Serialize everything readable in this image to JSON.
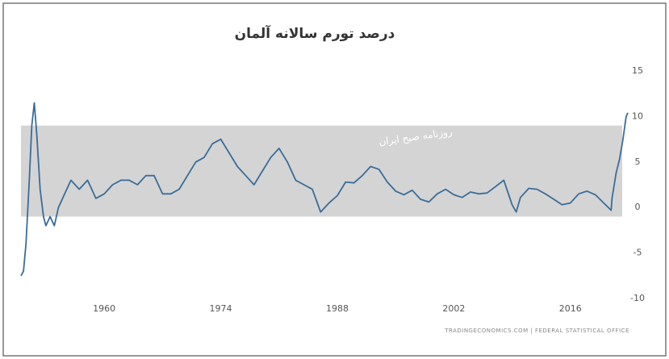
{
  "chart_data": {
    "type": "line",
    "title": "درصد تورم سالانه آلمان",
    "watermark": "روزنامه صبح ایران",
    "source": "TRADINGECONOMICS.COM | FEDERAL STATISTICAL OFFICE",
    "color": "#3a6c9a",
    "band": [
      -1,
      9
    ],
    "xlim": [
      1950,
      2023
    ],
    "xticks": [
      1960,
      1974,
      1988,
      2002,
      2016
    ],
    "ylim": [
      -10,
      15
    ],
    "yticks": [
      -10,
      -5,
      0,
      5,
      10,
      15
    ],
    "x": [
      1950,
      1950.3,
      1950.6,
      1951,
      1951.3,
      1951.6,
      1951.9,
      1952.3,
      1952.7,
      1953,
      1953.5,
      1954,
      1954.5,
      1955,
      1955.5,
      1956,
      1957,
      1958,
      1959,
      1960,
      1961,
      1962,
      1963,
      1964,
      1965,
      1966,
      1967,
      1968,
      1969,
      1970,
      1971,
      1972,
      1973,
      1974,
      1975,
      1976,
      1977,
      1978,
      1979,
      1980,
      1981,
      1982,
      1983,
      1984,
      1985,
      1986,
      1987,
      1988,
      1989,
      1990,
      1991,
      1992,
      1993,
      1994,
      1995,
      1996,
      1997,
      1998,
      1999,
      2000,
      2001,
      2002,
      2003,
      2004,
      2005,
      2006,
      2007,
      2008,
      2009,
      2009.5,
      2010,
      2011,
      2012,
      2013,
      2014,
      2015,
      2016,
      2017,
      2018,
      2019,
      2020,
      2020.9,
      2021,
      2021.5,
      2021.9,
      2022.3,
      2022.7,
      2022.9
    ],
    "values": [
      -7.5,
      -7,
      -4,
      3,
      9,
      11.5,
      8,
      2,
      -1,
      -2,
      -1,
      -2,
      0,
      1,
      2,
      3,
      2,
      3,
      1,
      1.5,
      2.5,
      3,
      3,
      2.5,
      3.5,
      3.5,
      1.5,
      1.5,
      2,
      3.5,
      5,
      5.5,
      7,
      7.5,
      6,
      4.5,
      3.5,
      2.5,
      4,
      5.5,
      6.5,
      5,
      3,
      2.5,
      2,
      -0.5,
      0.5,
      1.3,
      2.8,
      2.7,
      3.5,
      4.5,
      4.2,
      2.8,
      1.8,
      1.4,
      1.9,
      0.9,
      0.6,
      1.5,
      2,
      1.4,
      1.1,
      1.7,
      1.5,
      1.6,
      2.3,
      3,
      0.3,
      -0.5,
      1.1,
      2.1,
      2,
      1.5,
      0.9,
      0.3,
      0.5,
      1.5,
      1.8,
      1.4,
      0.5,
      -0.3,
      1,
      3.8,
      5.3,
      7.4,
      10,
      10.4
    ]
  }
}
